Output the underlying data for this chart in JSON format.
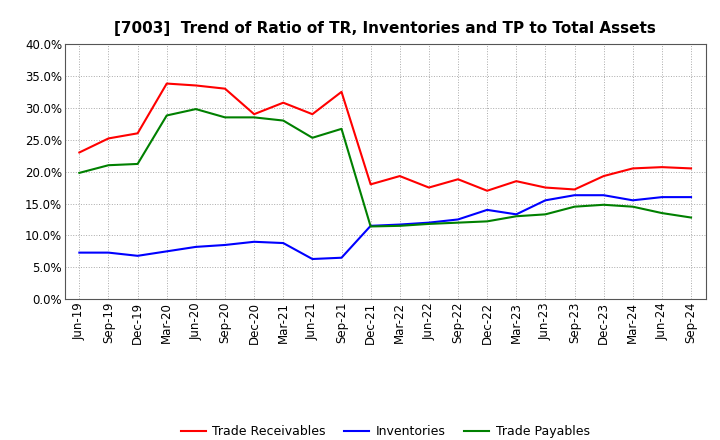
{
  "title": "[7003]  Trend of Ratio of TR, Inventories and TP to Total Assets",
  "x_labels": [
    "Jun-19",
    "Sep-19",
    "Dec-19",
    "Mar-20",
    "Jun-20",
    "Sep-20",
    "Dec-20",
    "Mar-21",
    "Jun-21",
    "Sep-21",
    "Dec-21",
    "Mar-22",
    "Jun-22",
    "Sep-22",
    "Dec-22",
    "Mar-23",
    "Jun-23",
    "Sep-23",
    "Dec-23",
    "Mar-24",
    "Jun-24",
    "Sep-24"
  ],
  "trade_receivables": [
    0.23,
    0.252,
    0.26,
    0.338,
    0.335,
    0.33,
    0.29,
    0.308,
    0.29,
    0.325,
    0.18,
    0.193,
    0.175,
    0.188,
    0.17,
    0.185,
    0.175,
    0.172,
    0.193,
    0.205,
    0.207,
    0.205
  ],
  "inventories": [
    0.073,
    0.073,
    0.068,
    0.075,
    0.082,
    0.085,
    0.09,
    0.088,
    0.063,
    0.065,
    0.115,
    0.117,
    0.12,
    0.125,
    0.14,
    0.133,
    0.155,
    0.163,
    0.163,
    0.155,
    0.16,
    0.16
  ],
  "trade_payables": [
    0.198,
    0.21,
    0.212,
    0.288,
    0.298,
    0.285,
    0.285,
    0.28,
    0.253,
    0.267,
    0.114,
    0.115,
    0.118,
    0.12,
    0.122,
    0.13,
    0.133,
    0.145,
    0.148,
    0.145,
    0.135,
    0.128
  ],
  "colors": {
    "trade_receivables": "#FF0000",
    "inventories": "#0000FF",
    "trade_payables": "#008000"
  },
  "ylim": [
    0.0,
    0.4
  ],
  "yticks": [
    0.0,
    0.05,
    0.1,
    0.15,
    0.2,
    0.25,
    0.3,
    0.35,
    0.4
  ],
  "background_color": "#FFFFFF",
  "plot_background": "#FFFFFF",
  "grid_color": "#AAAAAA",
  "line_width": 1.5,
  "title_fontsize": 11,
  "tick_fontsize": 8.5,
  "legend_fontsize": 9
}
